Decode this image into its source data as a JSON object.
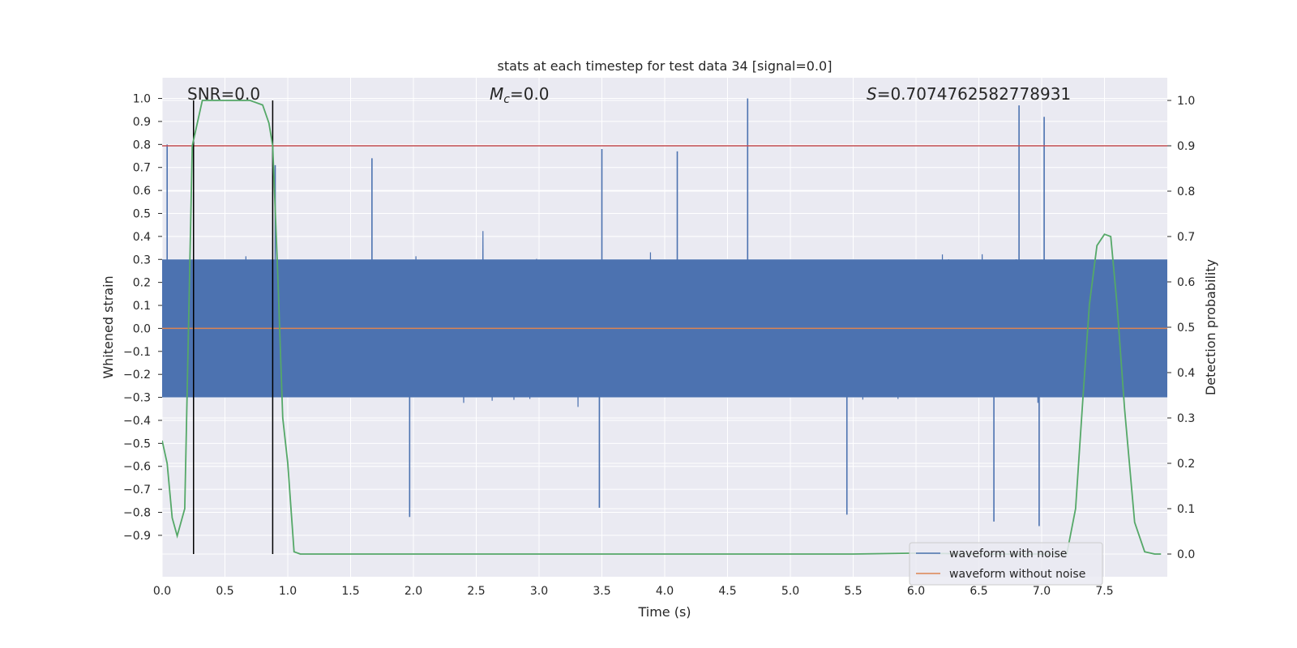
{
  "chart_data": {
    "type": "line",
    "title": "stats at each timestep for test data 34 [signal=0.0]",
    "xlabel": "Time (s)",
    "ylabel_left": "Whitened strain",
    "ylabel_right": "Detection probability",
    "xlim": [
      0.0,
      8.0
    ],
    "ylim_left": [
      -1.08,
      1.09
    ],
    "ylim_right": [
      -0.05,
      1.05
    ],
    "x_ticks": [
      "0.0",
      "0.5",
      "1.0",
      "1.5",
      "2.0",
      "2.5",
      "3.0",
      "3.5",
      "4.0",
      "4.5",
      "5.0",
      "5.5",
      "6.0",
      "6.5",
      "7.0",
      "7.5"
    ],
    "y_ticks_left": [
      "1.0",
      "0.9",
      "0.8",
      "0.7",
      "0.6",
      "0.5",
      "0.4",
      "0.3",
      "0.2",
      "0.1",
      "0.0",
      "−0.1",
      "−0.2",
      "−0.3",
      "−0.4",
      "−0.5",
      "−0.6",
      "−0.7",
      "−0.8",
      "−0.9"
    ],
    "y_ticks_right": [
      "1.0",
      "0.9",
      "0.8",
      "0.7",
      "0.6",
      "0.5",
      "0.4",
      "0.3",
      "0.2",
      "0.1",
      "0.0"
    ],
    "grid": true,
    "legend_position": "bottom-right",
    "annotations": {
      "snr": "SNR=0.0",
      "mc_symbol": "M",
      "mc_sub": "c",
      "mc_value": "=0.0",
      "s_symbol": "S",
      "s_value": "=0.7074762582778931"
    },
    "threshold_right": 0.9,
    "vertical_markers_x": [
      0.25,
      0.88
    ],
    "noise_envelope": {
      "dense_band_y": [
        -0.3,
        0.3
      ],
      "typical_peak_y": [
        -0.55,
        0.6
      ],
      "notable_peaks": [
        {
          "x": 0.04,
          "y": 0.8
        },
        {
          "x": 0.9,
          "y": 0.71
        },
        {
          "x": 1.67,
          "y": 0.74
        },
        {
          "x": 3.5,
          "y": 0.78
        },
        {
          "x": 4.1,
          "y": 0.77
        },
        {
          "x": 4.66,
          "y": 1.0
        },
        {
          "x": 6.82,
          "y": 0.97
        },
        {
          "x": 7.02,
          "y": 0.92
        },
        {
          "x": 1.97,
          "y": -0.82
        },
        {
          "x": 3.48,
          "y": -0.78
        },
        {
          "x": 5.45,
          "y": -0.81
        },
        {
          "x": 6.62,
          "y": -0.84
        },
        {
          "x": 6.98,
          "y": -0.86
        }
      ]
    },
    "series": [
      {
        "name": "waveform with noise",
        "color": "#4c72b0"
      },
      {
        "name": "waveform without noise",
        "color": "#dd8452",
        "constant_y": 0.0
      },
      {
        "color": "#55a868",
        "axis": "right",
        "x": [
          0.0,
          0.04,
          0.08,
          0.12,
          0.18,
          0.24,
          0.28,
          0.32,
          0.5,
          0.7,
          0.8,
          0.85,
          0.88,
          0.92,
          0.96,
          1.0,
          1.05,
          1.1,
          2.0,
          3.0,
          4.0,
          5.0,
          5.5,
          6.0,
          6.5,
          7.0,
          7.2,
          7.27,
          7.33,
          7.38,
          7.44,
          7.5,
          7.55,
          7.6,
          7.66,
          7.74,
          7.82,
          7.9,
          7.95
        ],
        "y": [
          0.25,
          0.2,
          0.08,
          0.04,
          0.1,
          0.9,
          0.95,
          1.0,
          1.0,
          1.0,
          0.99,
          0.95,
          0.9,
          0.62,
          0.3,
          0.2,
          0.005,
          0.0,
          0.0,
          0.0,
          0.0,
          0.0,
          0.0,
          0.002,
          0.0,
          0.0,
          0.0,
          0.1,
          0.35,
          0.55,
          0.68,
          0.705,
          0.7,
          0.55,
          0.32,
          0.07,
          0.005,
          0.0,
          0.0
        ]
      }
    ]
  },
  "legend": {
    "items": [
      {
        "label": "waveform with noise",
        "color": "#4c72b0"
      },
      {
        "label": "waveform without noise",
        "color": "#dd8452"
      }
    ]
  },
  "colors": {
    "plot_bg": "#eaeaf2",
    "grid": "#ffffff",
    "noise": "#4c72b0",
    "clean": "#dd8452",
    "probability": "#55a868",
    "threshold": "#c44e52",
    "marker": "#000000"
  }
}
